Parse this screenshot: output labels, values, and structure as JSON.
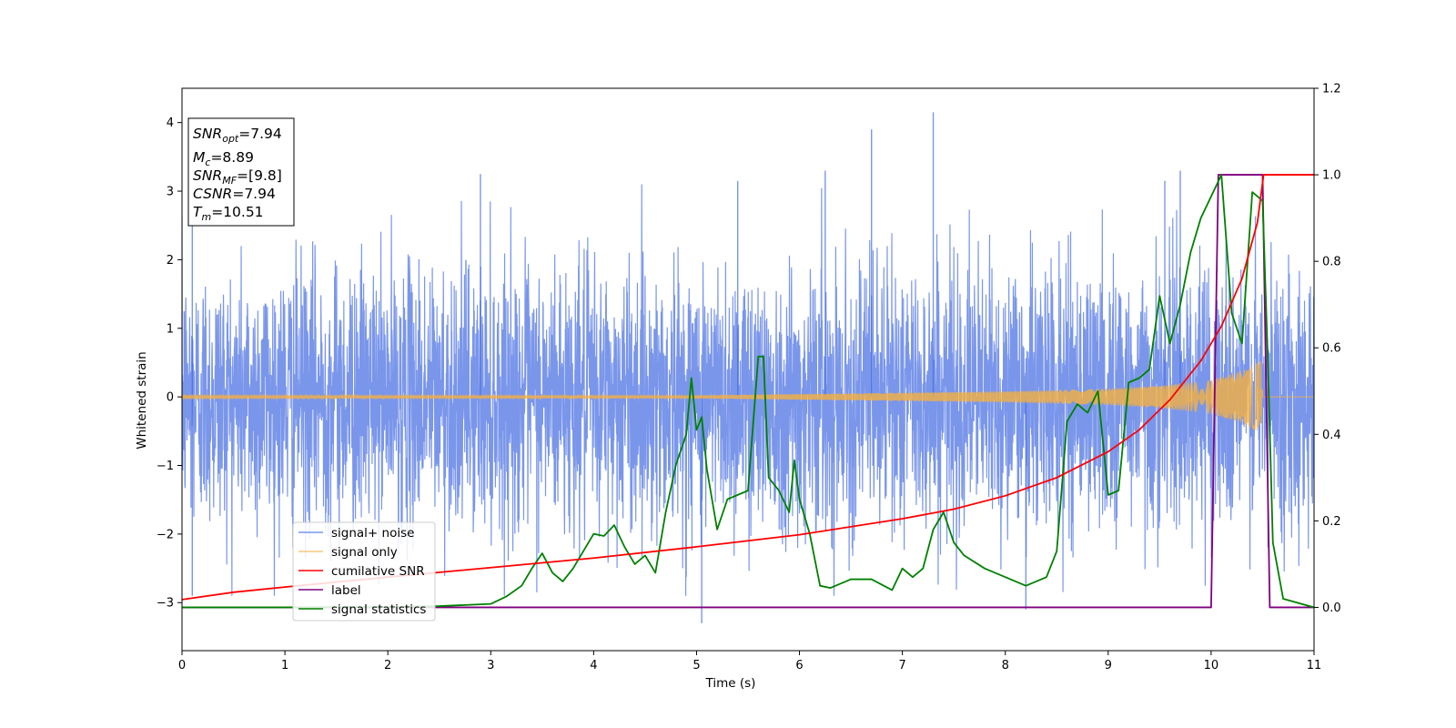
{
  "chart_data": {
    "type": "line",
    "title": "",
    "xlabel": "Time (s)",
    "ylabel_left": "Whitened strain",
    "ylabel_right": "",
    "xlim": [
      0,
      11
    ],
    "ylim_left": [
      -3.7,
      4.5
    ],
    "ylim_right": [
      -0.1,
      1.2
    ],
    "x_ticks": [
      0,
      1,
      2,
      3,
      4,
      5,
      6,
      7,
      8,
      9,
      10,
      11
    ],
    "y_left_ticks": [
      -3,
      -2,
      -1,
      0,
      1,
      2,
      3,
      4
    ],
    "y_right_ticks": [
      0.0,
      0.2,
      0.4,
      0.6,
      0.8,
      1.0,
      1.2
    ],
    "grid": false,
    "legend_position": "lower-left",
    "legend": [
      "signal+ noise",
      "signal only",
      "cumilative SNR",
      "label",
      "signal statistics"
    ],
    "info_box": {
      "snr_opt": {
        "base": "SNR",
        "sub": "opt",
        "rest": "=7.94"
      },
      "mc": {
        "base": "M",
        "sub": "c",
        "rest": "=8.89"
      },
      "snr_mf": {
        "base": "SNR",
        "sub": "MF",
        "rest": "=[9.8]"
      },
      "csnr": {
        "base": "CSNR",
        "sub": "",
        "rest": "=7.94"
      },
      "tm": {
        "base": "T",
        "sub": "m",
        "rest": "=10.51"
      }
    },
    "series": [
      {
        "name": "signal+ noise",
        "axis": "left",
        "color": "#4169e1",
        "description_values": {
          "typical_std": 1.0,
          "min": -3.3,
          "max": 4.15
        },
        "peaks": [
          [
            0.1,
            3.2
          ],
          [
            2.9,
            3.25
          ],
          [
            5.4,
            3.15
          ],
          [
            6.25,
            3.3
          ],
          [
            6.7,
            3.9
          ],
          [
            7.3,
            4.15
          ],
          [
            9.55,
            3.15
          ],
          [
            9.7,
            3.3
          ],
          [
            5.05,
            -3.3
          ],
          [
            8.2,
            -3.1
          ],
          [
            0.1,
            -2.9
          ]
        ]
      },
      {
        "name": "signal only",
        "axis": "left",
        "color": "#f5b041",
        "envelope": [
          [
            0,
            0.02
          ],
          [
            5,
            0.02
          ],
          [
            8,
            0.08
          ],
          [
            9,
            0.12
          ],
          [
            9.5,
            0.16
          ],
          [
            10,
            0.25
          ],
          [
            10.3,
            0.38
          ],
          [
            10.5,
            0.55
          ],
          [
            10.51,
            0
          ],
          [
            11,
            0
          ]
        ]
      },
      {
        "name": "cumilative SNR",
        "axis": "right",
        "color": "#ff0000",
        "x": [
          0,
          0.5,
          1,
          2,
          3,
          4,
          5,
          6,
          7,
          7.5,
          8,
          8.5,
          9,
          9.3,
          9.6,
          9.9,
          10.1,
          10.3,
          10.45,
          10.51,
          11
        ],
        "y": [
          0.018,
          0.035,
          0.047,
          0.07,
          0.092,
          0.114,
          0.14,
          0.168,
          0.205,
          0.227,
          0.258,
          0.3,
          0.36,
          0.41,
          0.48,
          0.57,
          0.65,
          0.76,
          0.89,
          1.0,
          1.0
        ]
      },
      {
        "name": "label",
        "axis": "right",
        "color": "#800080",
        "x": [
          0,
          10.0,
          10.07,
          10.5,
          10.57,
          11
        ],
        "y": [
          0,
          0,
          1,
          1,
          0,
          0
        ]
      },
      {
        "name": "signal statistics",
        "axis": "right",
        "color": "#008000",
        "x": [
          0,
          1,
          2,
          2.5,
          3,
          3.15,
          3.3,
          3.4,
          3.5,
          3.6,
          3.7,
          3.8,
          3.9,
          4.0,
          4.1,
          4.2,
          4.3,
          4.4,
          4.5,
          4.6,
          4.7,
          4.8,
          4.9,
          4.95,
          5.0,
          5.05,
          5.1,
          5.2,
          5.3,
          5.4,
          5.5,
          5.6,
          5.65,
          5.7,
          5.8,
          5.9,
          5.95,
          6.0,
          6.1,
          6.2,
          6.3,
          6.5,
          6.7,
          6.9,
          7.0,
          7.1,
          7.2,
          7.3,
          7.4,
          7.5,
          7.6,
          7.8,
          8.0,
          8.2,
          8.4,
          8.5,
          8.6,
          8.7,
          8.8,
          8.9,
          9.0,
          9.1,
          9.2,
          9.3,
          9.4,
          9.5,
          9.6,
          9.7,
          9.8,
          9.9,
          10.0,
          10.1,
          10.2,
          10.3,
          10.4,
          10.5,
          10.55,
          10.6,
          10.7,
          11
        ],
        "y": [
          0,
          0,
          0.001,
          0.003,
          0.008,
          0.025,
          0.05,
          0.09,
          0.125,
          0.08,
          0.06,
          0.09,
          0.13,
          0.17,
          0.165,
          0.19,
          0.14,
          0.1,
          0.12,
          0.08,
          0.22,
          0.33,
          0.4,
          0.53,
          0.41,
          0.44,
          0.32,
          0.18,
          0.25,
          0.26,
          0.27,
          0.58,
          0.58,
          0.3,
          0.27,
          0.22,
          0.34,
          0.25,
          0.17,
          0.05,
          0.045,
          0.065,
          0.065,
          0.04,
          0.09,
          0.07,
          0.09,
          0.18,
          0.22,
          0.15,
          0.12,
          0.09,
          0.07,
          0.05,
          0.07,
          0.13,
          0.43,
          0.47,
          0.45,
          0.5,
          0.26,
          0.27,
          0.52,
          0.53,
          0.55,
          0.72,
          0.61,
          0.7,
          0.82,
          0.9,
          0.95,
          1.0,
          0.68,
          0.61,
          0.96,
          0.94,
          0.58,
          0.15,
          0.02,
          0.0
        ]
      }
    ]
  }
}
